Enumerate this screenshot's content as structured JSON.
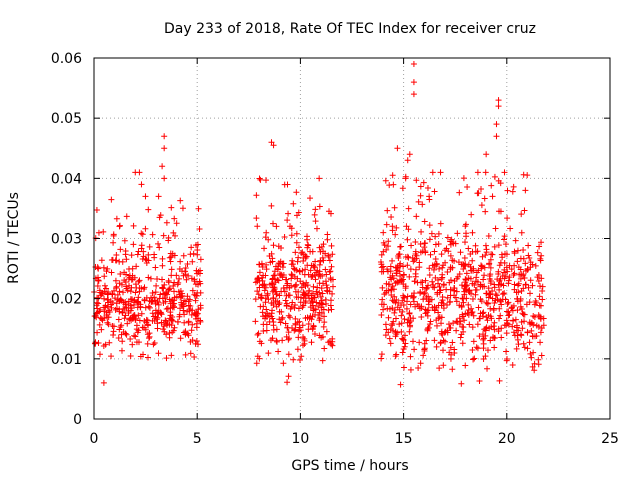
{
  "chart_data": {
    "type": "scatter",
    "title": "Day 233 of 2018, Rate Of TEC Index for receiver cruz",
    "xlabel": "GPS time / hours",
    "ylabel": "ROTI / TECUs",
    "xlim": [
      0,
      25
    ],
    "ylim": [
      0,
      0.06
    ],
    "grid": true,
    "marker": "+",
    "color": "#ff0000",
    "x_ticks": [
      "0",
      "5",
      "10",
      "15",
      "20",
      "25"
    ],
    "y_ticks": [
      "0",
      "0.01",
      "0.02",
      "0.03",
      "0.04",
      "0.05",
      "0.06"
    ],
    "x_tick_values": [
      0,
      5,
      10,
      15,
      20,
      25
    ],
    "y_tick_values": [
      0,
      0.01,
      0.02,
      0.03,
      0.04,
      0.05,
      0.06
    ],
    "series": [
      {
        "name": "ROTI",
        "segments": [
          {
            "x_range": [
              0.0,
              5.2
            ],
            "typical_range": [
              0.008,
              0.034
            ],
            "count": 520
          },
          {
            "x_range": [
              7.8,
              11.6
            ],
            "typical_range": [
              0.006,
              0.037
            ],
            "count": 420
          },
          {
            "x_range": [
              13.9,
              21.8
            ],
            "typical_range": [
              0.005,
              0.038
            ],
            "count": 820
          }
        ],
        "notable_points": [
          [
            3.4,
            0.047
          ],
          [
            3.4,
            0.045
          ],
          [
            3.3,
            0.042
          ],
          [
            3.4,
            0.04
          ],
          [
            2.0,
            0.041
          ],
          [
            2.2,
            0.041
          ],
          [
            2.3,
            0.039
          ],
          [
            8.6,
            0.046
          ],
          [
            8.7,
            0.0455
          ],
          [
            14.7,
            0.045
          ],
          [
            15.5,
            0.059
          ],
          [
            15.5,
            0.056
          ],
          [
            15.5,
            0.054
          ],
          [
            15.3,
            0.044
          ],
          [
            15.2,
            0.043
          ],
          [
            15.1,
            0.04
          ],
          [
            19.6,
            0.053
          ],
          [
            19.6,
            0.052
          ],
          [
            19.5,
            0.049
          ],
          [
            19.5,
            0.047
          ],
          [
            19.0,
            0.044
          ],
          [
            18.6,
            0.041
          ],
          [
            20.9,
            0.038
          ]
        ]
      }
    ]
  }
}
